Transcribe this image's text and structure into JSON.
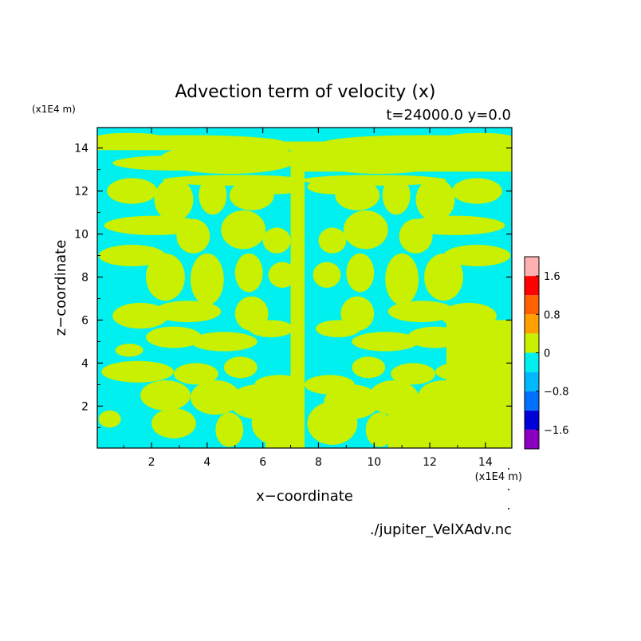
{
  "chart_data": {
    "type": "heatmap",
    "title": "Advection term of velocity (x)",
    "subtitle": "t=24000.0 y=0.0",
    "xlabel": "x−coordinate",
    "ylabel": "z−coordinate",
    "x_unit": "(x1E4 m)",
    "y_unit": "(x1E4 m)",
    "xlim": [
      0.05,
      14.95
    ],
    "ylim": [
      0.05,
      14.95
    ],
    "x_ticks": [
      2,
      4,
      6,
      8,
      10,
      12,
      14
    ],
    "y_ticks": [
      2,
      4,
      6,
      8,
      10,
      12,
      14
    ],
    "field_description": "Filled contours of the x-advection term; values lie almost entirely between -0.4 and 0.4 (cyan for slightly negative, yellow-green for slightly positive), roughly mirror-symmetric about x = 7.5.",
    "colorbar": {
      "levels": [
        -2.0,
        -1.6,
        -1.2,
        -0.8,
        -0.4,
        0,
        0.4,
        0.8,
        1.2,
        1.6,
        2.0
      ],
      "colors": [
        "#8b00c0",
        "#0000d8",
        "#0070ff",
        "#00b8ff",
        "#00f0f0",
        "#c8f000",
        "#ffa000",
        "#ff6000",
        "#ff0000",
        "#ffb0b0"
      ],
      "tick_labels": [
        "1.6",
        "0.8",
        "0",
        "−0.8",
        "−1.6"
      ],
      "tick_values": [
        1.6,
        0.8,
        0,
        -0.8,
        -1.6
      ]
    },
    "footer": "./jupiter_VelXAdv.nc"
  }
}
